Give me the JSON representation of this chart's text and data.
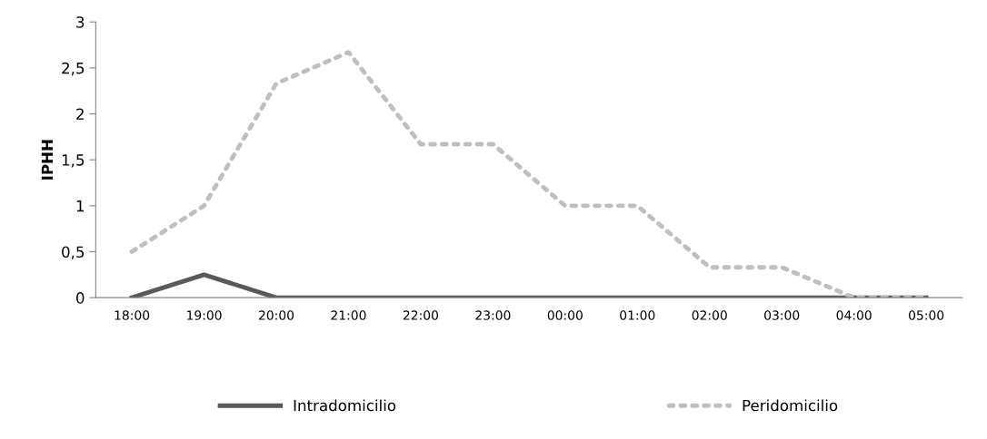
{
  "chart_data": {
    "type": "line",
    "ylabel": "IPHH",
    "categories": [
      "18:00",
      "19:00",
      "20:00",
      "21:00",
      "22:00",
      "23:00",
      "00:00",
      "01:00",
      "02:00",
      "03:00",
      "04:00",
      "05:00"
    ],
    "series": [
      {
        "name": "Intradomicilio",
        "color": "#595959",
        "line_style": "solid",
        "values": [
          0,
          0.25,
          0,
          0,
          0,
          0,
          0,
          0,
          0,
          0,
          0,
          0
        ]
      },
      {
        "name": "Peridomicilio",
        "color": "#bfbfbf",
        "line_style": "dotted",
        "values": [
          0.5,
          1,
          2.33,
          2.67,
          1.67,
          1.67,
          1,
          1,
          0.33,
          0.33,
          0,
          0
        ]
      }
    ],
    "ylim": [
      0,
      3
    ],
    "yticks": [
      0,
      {
        "value": 0.5,
        "label": "0,5"
      },
      1,
      {
        "value": 1.5,
        "label": "1,5"
      },
      2,
      {
        "value": 2.5,
        "label": "2,5"
      },
      3
    ],
    "grid": false,
    "legend": "bottom",
    "marker": "none"
  }
}
